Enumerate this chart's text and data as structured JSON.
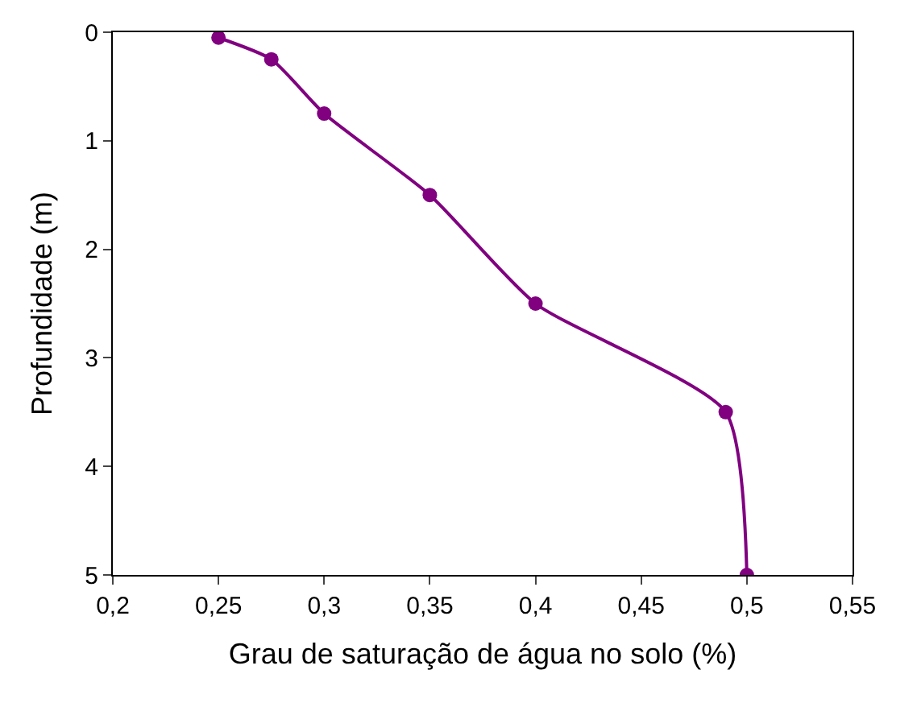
{
  "chart_data": {
    "type": "line",
    "xlabel": "Grau de saturação de água no solo (%)",
    "ylabel": "Profundidade (m)",
    "series": [
      {
        "color": "#800080",
        "x": [
          0.25,
          0.275,
          0.3,
          0.35,
          0.4,
          0.49,
          0.5
        ],
        "values": [
          0.05,
          0.25,
          0.75,
          1.5,
          2.5,
          3.5,
          5
        ]
      }
    ],
    "xlim": [
      0.2,
      0.55
    ],
    "xticks": [
      {
        "value": 0.2,
        "label": "0,2"
      },
      {
        "value": 0.25,
        "label": "0,25"
      },
      {
        "value": 0.3,
        "label": "0,3"
      },
      {
        "value": 0.35,
        "label": "0,35"
      },
      {
        "value": 0.4,
        "label": "0,4"
      },
      {
        "value": 0.45,
        "label": "0,45"
      },
      {
        "value": 0.5,
        "label": "0,5"
      },
      {
        "value": 0.55,
        "label": "0,55"
      }
    ],
    "ylim": [
      5,
      0
    ],
    "yticks": [
      0,
      1,
      2,
      3,
      4,
      5
    ],
    "legend": false,
    "marker": "circle",
    "line_style": "solid"
  }
}
